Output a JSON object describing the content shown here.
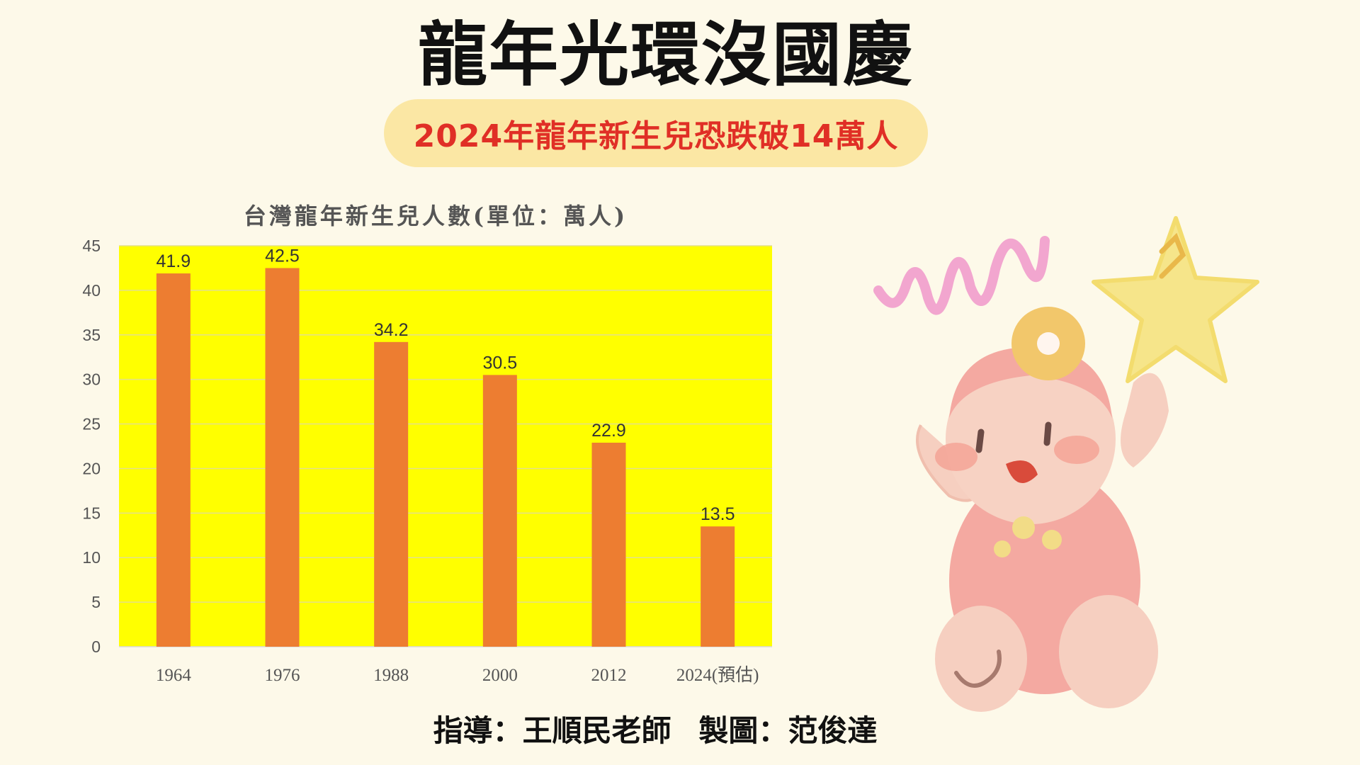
{
  "header": {
    "title": "龍年光環沒國慶",
    "subtitle": "2024年龍年新生兒恐跌破14萬人"
  },
  "footer": {
    "advisor": "指導：王順民老師",
    "maker": "製圖：范俊達"
  },
  "colors": {
    "background": "#fdf9e9",
    "plot_background": "#ffff00",
    "bar": "#ed7d31",
    "subtitle_pill": "#fbe7a4",
    "subtitle_text": "#e02f26"
  },
  "chart_data": {
    "type": "bar",
    "title": "台灣龍年新生兒人數(單位：萬人)",
    "categories": [
      "1964",
      "1976",
      "1988",
      "2000",
      "2012",
      "2024(預估)"
    ],
    "values": [
      41.9,
      42.5,
      34.2,
      30.5,
      22.9,
      13.5
    ],
    "data_labels": [
      "41.9",
      "42.5",
      "34.2",
      "30.5",
      "22.9",
      "13.5"
    ],
    "ylim": [
      0,
      45
    ],
    "yticks": [
      0,
      5,
      10,
      15,
      20,
      25,
      30,
      35,
      40,
      45
    ],
    "xlabel": "",
    "ylabel": "",
    "grid": true,
    "legend": "none"
  }
}
